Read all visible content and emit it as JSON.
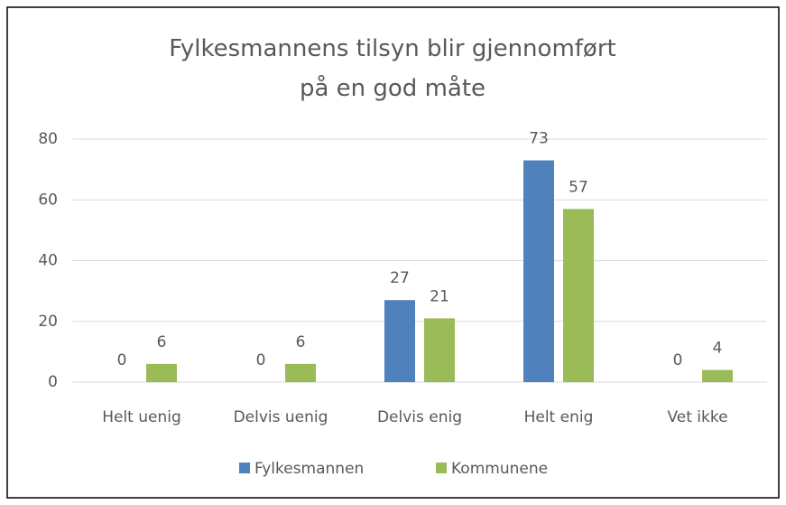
{
  "chart_data": {
    "type": "bar",
    "title": "Fylkesmannens tilsyn blir gjennomført på en god måte",
    "categories": [
      "Helt uenig",
      "Delvis uenig",
      "Delvis enig",
      "Helt enig",
      "Vet ikke"
    ],
    "series": [
      {
        "name": "Fylkesmannen",
        "color": "#4f81bd",
        "values": [
          0,
          0,
          27,
          73,
          0
        ]
      },
      {
        "name": "Kommunene",
        "color": "#9bbb59",
        "values": [
          6,
          6,
          21,
          57,
          4
        ]
      }
    ],
    "ylim": [
      0,
      80
    ],
    "yticks": [
      0,
      20,
      40,
      60,
      80
    ],
    "grid": true,
    "legend": "bottom"
  }
}
